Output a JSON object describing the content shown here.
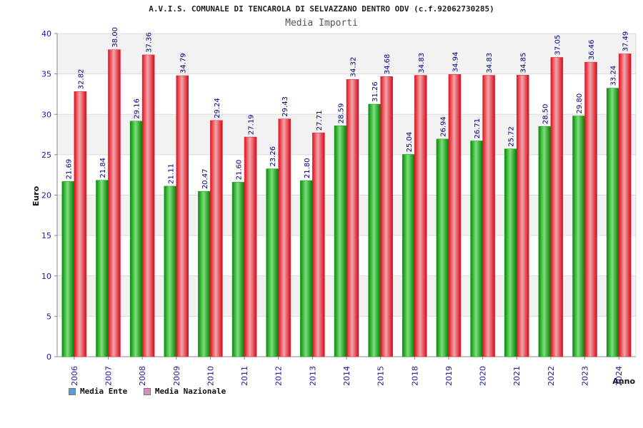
{
  "chart_data": {
    "type": "bar",
    "title": "A.V.I.S. COMUNALE DI TENCAROLA DI SELVAZZANO DENTRO ODV (c.f.92062730285)",
    "subtitle": "Media Importi",
    "xlabel": "Anno",
    "ylabel": "Euro",
    "ylim": [
      0,
      40
    ],
    "yticks": [
      "0",
      "5",
      "10",
      "15",
      "20",
      "25",
      "30",
      "35",
      "40"
    ],
    "grid": true,
    "legend_position": "bottom-left",
    "categories": [
      "2006",
      "2007",
      "2008",
      "2009",
      "2010",
      "2011",
      "2012",
      "2013",
      "2014",
      "2015",
      "2018",
      "2019",
      "2020",
      "2021",
      "2022",
      "2023",
      "2024"
    ],
    "series": [
      {
        "name": "Media Ente",
        "color": "#0aa50a",
        "legend_color": "#5b9bd5",
        "values": [
          21.69,
          21.84,
          29.16,
          21.11,
          20.47,
          21.6,
          23.26,
          21.8,
          28.59,
          31.26,
          25.04,
          26.94,
          26.71,
          25.72,
          28.5,
          29.8,
          33.24
        ],
        "labels": [
          "21.69",
          "21.84",
          "29.16",
          "21.11",
          "20.47",
          "21.60",
          "23.26",
          "21.80",
          "28.59",
          "31.26",
          "25.04",
          "26.94",
          "26.71",
          "25.72",
          "28.50",
          "29.80",
          "33.24"
        ]
      },
      {
        "name": "Media Nazionale",
        "color": "#e8202e",
        "legend_color": "#d98cc0",
        "values": [
          32.82,
          38.0,
          37.36,
          34.79,
          29.24,
          27.19,
          29.43,
          27.71,
          34.32,
          34.68,
          34.83,
          34.94,
          34.83,
          34.85,
          37.05,
          36.46,
          37.49
        ],
        "labels": [
          "32.82",
          "38.00",
          "37.36",
          "34.79",
          "29.24",
          "27.19",
          "29.43",
          "27.71",
          "34.32",
          "34.68",
          "34.83",
          "34.94",
          "34.83",
          "34.85",
          "37.05",
          "36.46",
          "37.49"
        ]
      }
    ]
  }
}
